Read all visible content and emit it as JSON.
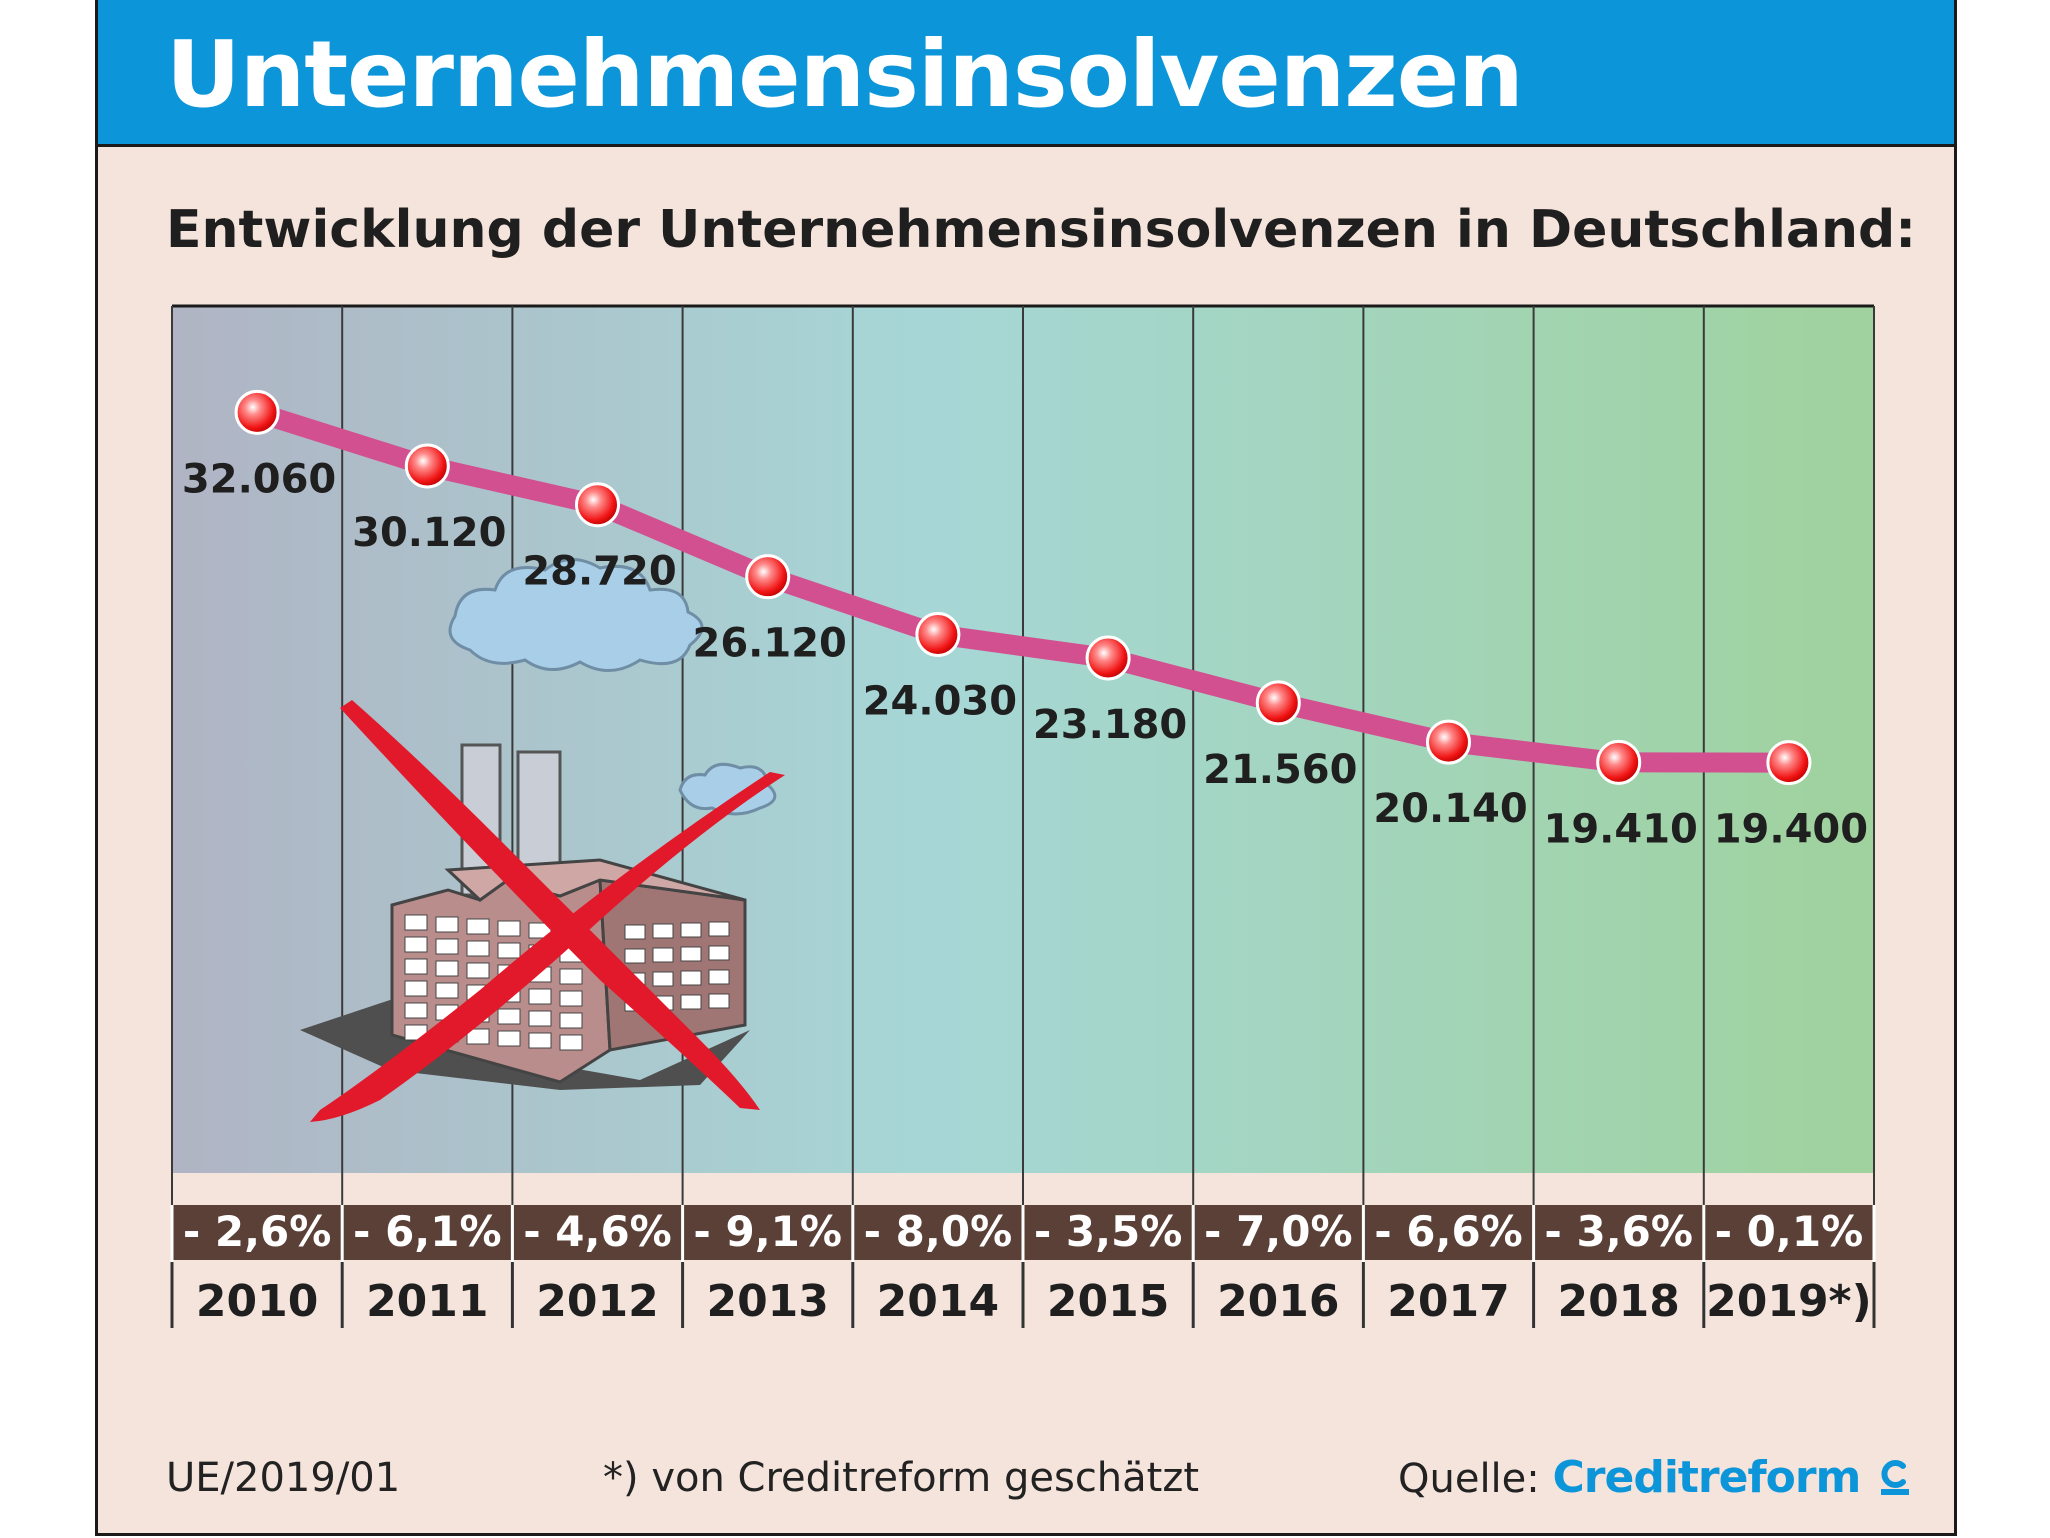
{
  "header": {
    "title": "Unternehmensinsolvenzen"
  },
  "footer": {
    "code": "UE/2019/01",
    "note": "*) von Creditreform geschätzt",
    "source_label": "Quelle:",
    "source_brand": "Creditreform",
    "brand_icon": "creditreform-logo-icon"
  },
  "colors": {
    "title_bar": "#0c96d9",
    "frame_bg": "#f5e4dc",
    "line": "#d2508f",
    "marker": "#f01414",
    "change_band": "#5b4037",
    "gradient_start": "#b0b4c4",
    "gradient_end": "#9fd29d"
  },
  "chart_data": {
    "type": "line",
    "title": "Entwicklung der Unternehmensinsolvenzen in Deutschland:",
    "categories": [
      "2010",
      "2011",
      "2012",
      "2013",
      "2014",
      "2015",
      "2016",
      "2017",
      "2018",
      "2019*)"
    ],
    "values": [
      32060,
      30120,
      28720,
      26120,
      24030,
      23180,
      21560,
      20140,
      19410,
      19400
    ],
    "value_labels": [
      "32.060",
      "30.120",
      "28.720",
      "26.120",
      "24.030",
      "23.180",
      "21.560",
      "20.140",
      "19.410",
      "19.400"
    ],
    "changes": [
      "- 2,6%",
      "- 6,1%",
      "- 4,6%",
      "- 9,1%",
      "- 8,0%",
      "- 3,5%",
      "- 7,0%",
      "- 6,6%",
      "- 3,6%",
      "- 0,1%"
    ],
    "ylim": [
      5000,
      35000
    ],
    "grid": true,
    "illustration": "crossed-out-factory"
  }
}
